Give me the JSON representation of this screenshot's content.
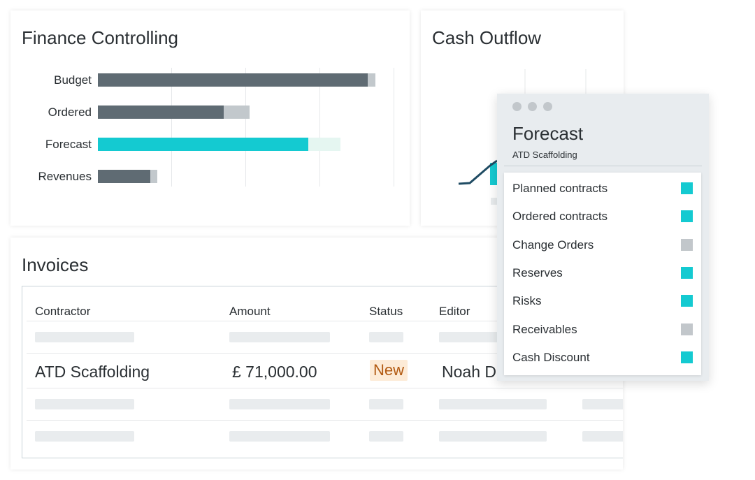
{
  "finance": {
    "title": "Finance Controlling",
    "chart_data": {
      "type": "bar",
      "categories": [
        "Budget",
        "Ordered",
        "Forecast",
        "Revenues"
      ],
      "series": [
        {
          "values": [
            386,
            180,
            301,
            75
          ]
        },
        {
          "values": [
            11,
            37,
            46,
            10
          ]
        }
      ],
      "colors": {
        "dark": "#5f6b73",
        "dark_light": "#c2c8cc",
        "accent": "#14cad1",
        "accent_light": "#e5f6f1"
      },
      "grid": true
    }
  },
  "cash": {
    "title": "Cash Outflow"
  },
  "invoices": {
    "title": "Invoices",
    "columns": [
      "Contractor",
      "Amount",
      "Status",
      "Editor"
    ],
    "row": {
      "contractor": "ATD Scaffolding",
      "amount": "£ 71,000.00",
      "status": "New",
      "editor": "Noah D"
    }
  },
  "popup": {
    "title": "Forecast",
    "subtitle": "ATD Scaffolding",
    "items": [
      {
        "label": "Planned contracts",
        "color": "#14cad1"
      },
      {
        "label": "Ordered contracts",
        "color": "#14cad1"
      },
      {
        "label": "Change Orders",
        "color": "#c2c7cb"
      },
      {
        "label": "Reserves",
        "color": "#14cad1"
      },
      {
        "label": "Risks",
        "color": "#14cad1"
      },
      {
        "label": "Receivables",
        "color": "#c2c7cb"
      },
      {
        "label": "Cash Discount",
        "color": "#14cad1"
      }
    ]
  }
}
